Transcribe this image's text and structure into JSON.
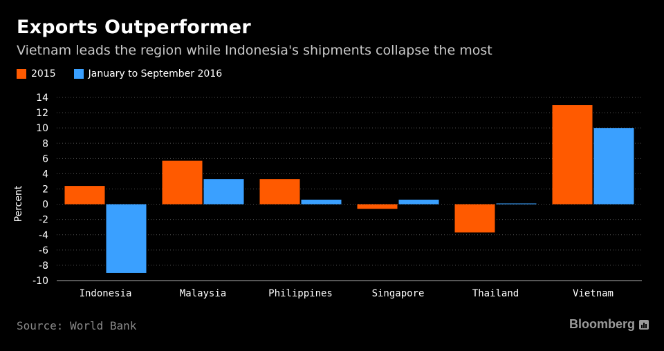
{
  "header": {
    "title": "Exports Outperformer",
    "subtitle": "Vietnam leads the region while Indonesia's shipments collapse the most"
  },
  "footer": {
    "source": "Source: World Bank",
    "brand": "Bloomberg"
  },
  "colors": {
    "series_2015": "#ff5a00",
    "series_2016": "#3aa0ff",
    "grid": "#555555",
    "background": "#000000"
  },
  "chart_data": {
    "type": "bar",
    "title": "Exports Outperformer",
    "subtitle": "Vietnam leads the region while Indonesia's shipments collapse the most",
    "xlabel": "",
    "ylabel": "Percent",
    "ylim": [
      -10,
      14
    ],
    "yticks": [
      14,
      12,
      10,
      8,
      6,
      4,
      2,
      0,
      -2,
      -4,
      -6,
      -8,
      -10
    ],
    "grid": true,
    "legend_position": "top-left",
    "categories": [
      "Indonesia",
      "Malaysia",
      "Philippines",
      "Singapore",
      "Thailand",
      "Vietnam"
    ],
    "series": [
      {
        "name": "2015",
        "values": [
          2.4,
          5.7,
          3.3,
          -0.6,
          -3.7,
          13.0
        ]
      },
      {
        "name": "January to September 2016",
        "values": [
          -9.0,
          3.3,
          0.6,
          0.6,
          0.1,
          10.0
        ]
      }
    ]
  }
}
